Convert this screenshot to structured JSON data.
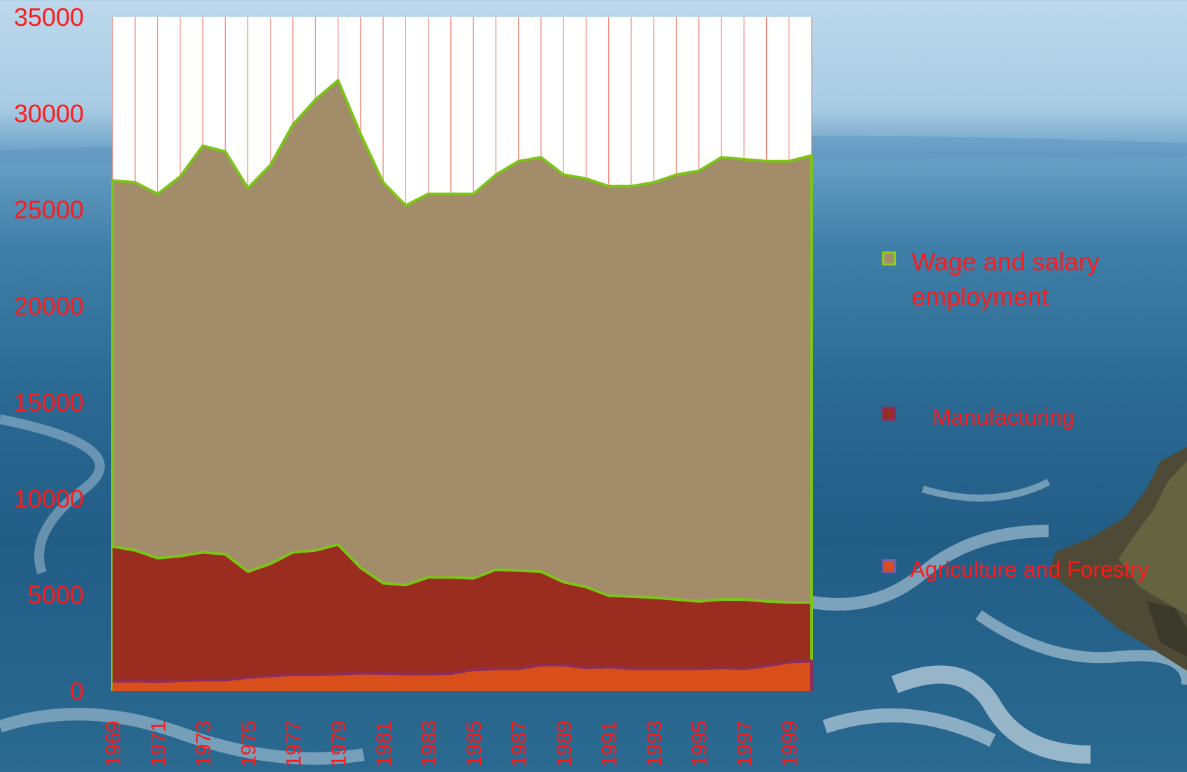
{
  "chart_data": {
    "type": "area",
    "stacked": true,
    "title": "",
    "xlabel": "",
    "ylabel": "",
    "ylim": [
      0,
      35000
    ],
    "yticks": [
      0,
      5000,
      10000,
      15000,
      20000,
      25000,
      30000,
      35000
    ],
    "x": [
      1969,
      1970,
      1971,
      1972,
      1973,
      1974,
      1975,
      1976,
      1977,
      1978,
      1979,
      1980,
      1981,
      1982,
      1983,
      1984,
      1985,
      1986,
      1987,
      1988,
      1989,
      1990,
      1991,
      1992,
      1993,
      1994,
      1995,
      1996,
      1997,
      1998,
      1999,
      2000
    ],
    "xtick_labels": [
      "1969",
      "1971",
      "1973",
      "1975",
      "1977",
      "1979",
      "1981",
      "1983",
      "1985",
      "1987",
      "1989",
      "1991",
      "1993",
      "1995",
      "1997",
      "1999"
    ],
    "grid": "vertical",
    "legend_position": "right",
    "series": [
      {
        "name": "Agriculture and Forestry",
        "color": "#d94f1b",
        "line_color": "#8c2d5a",
        "values": [
          500,
          520,
          480,
          540,
          560,
          560,
          700,
          780,
          850,
          850,
          880,
          930,
          910,
          880,
          880,
          900,
          1100,
          1150,
          1150,
          1350,
          1350,
          1200,
          1250,
          1150,
          1150,
          1150,
          1150,
          1200,
          1150,
          1300,
          1500,
          1550
        ]
      },
      {
        "name": "Manufacturing",
        "color": "#9b2c20",
        "line_color": "#7cc418",
        "values": [
          7500,
          7300,
          6900,
          7000,
          7200,
          7100,
          6200,
          6600,
          7200,
          7300,
          7600,
          6400,
          5600,
          5500,
          5900,
          5900,
          5850,
          6300,
          6250,
          6200,
          5650,
          5400,
          4950,
          4900,
          4850,
          4750,
          4650,
          4750,
          4750,
          4650,
          4600,
          4600
        ]
      },
      {
        "name": "Wage and salary employment",
        "color": "#a38c6a",
        "line_color": "#7cc418",
        "values": [
          26500,
          26400,
          25800,
          26700,
          28300,
          28000,
          26100,
          27300,
          29400,
          30700,
          31700,
          28900,
          26400,
          25200,
          25800,
          25800,
          25800,
          26800,
          27500,
          27700,
          26800,
          26600,
          26200,
          26200,
          26400,
          26800,
          27000,
          27700,
          27600,
          27500,
          27500,
          27800
        ]
      }
    ],
    "legend": [
      {
        "label": "Wage and salary employment",
        "swatch_fill": "#a38c6a",
        "swatch_border": "#8fcf1a"
      },
      {
        "label": "Manufacturing",
        "swatch_fill": "#9b2c20",
        "swatch_border": "#8c2d5a"
      },
      {
        "label": "Agriculture and Forestry",
        "swatch_fill": "#d94f1b",
        "swatch_border": "#7a5aa8"
      }
    ],
    "label_color": "#ff1a1a",
    "gridline_color": "#f08070",
    "plot_background": "#ffffff"
  }
}
